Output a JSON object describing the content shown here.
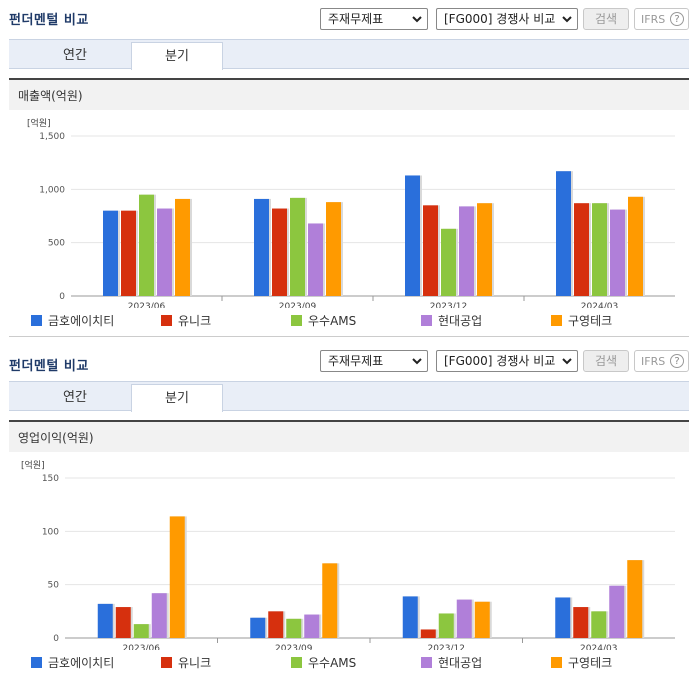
{
  "colors": {
    "series": [
      "#2a6fdb",
      "#d6300e",
      "#8cc63f",
      "#b07fd9",
      "#ff9a00"
    ],
    "title": "#1f3a68",
    "gridline": "#e4e4e4"
  },
  "sections": [
    {
      "title": "펀더멘털 비교",
      "select1": "주재무제표",
      "select2": "[FG000] 경쟁사 비교",
      "search_label": "검색",
      "ifrs_label": "IFRS",
      "ifrs_help": "?",
      "tabs": [
        "연간",
        "분기"
      ],
      "active_tab": 1,
      "panel_title": "매출액(억원)"
    },
    {
      "title": "펀더멘털 비교",
      "select1": "주재무제표",
      "select2": "[FG000] 경쟁사 비교",
      "search_label": "검색",
      "ifrs_label": "IFRS",
      "ifrs_help": "?",
      "tabs": [
        "연간",
        "분기"
      ],
      "active_tab": 1,
      "panel_title": "영업이익(억원)"
    }
  ],
  "chart_data": [
    {
      "type": "bar",
      "title": "매출액(억원)",
      "unit_label": "[억원]",
      "categories": [
        "2023/06",
        "2023/09",
        "2023/12",
        "2024/03"
      ],
      "ylim": [
        0,
        1500
      ],
      "yticks": [
        0,
        500,
        1000,
        1500
      ],
      "ytick_labels": [
        "0",
        "500",
        "1,000",
        "1,500"
      ],
      "grid": true,
      "legend_position": "bottom",
      "series": [
        {
          "name": "금호에이치티",
          "values": [
            800,
            910,
            1130,
            1170
          ]
        },
        {
          "name": "유니크",
          "values": [
            800,
            820,
            850,
            870
          ]
        },
        {
          "name": "우수AMS",
          "values": [
            950,
            920,
            630,
            870
          ]
        },
        {
          "name": "현대공업",
          "values": [
            820,
            680,
            840,
            810
          ]
        },
        {
          "name": "구영테크",
          "values": [
            910,
            880,
            870,
            930
          ]
        }
      ]
    },
    {
      "type": "bar",
      "title": "영업이익(억원)",
      "unit_label": "[억원]",
      "categories": [
        "2023/06",
        "2023/09",
        "2023/12",
        "2024/03"
      ],
      "ylim": [
        0,
        150
      ],
      "yticks": [
        0,
        50,
        100,
        150
      ],
      "ytick_labels": [
        "0",
        "50",
        "100",
        "150"
      ],
      "grid": true,
      "legend_position": "bottom",
      "series": [
        {
          "name": "금호에이치티",
          "values": [
            32,
            19,
            39,
            38
          ]
        },
        {
          "name": "유니크",
          "values": [
            29,
            25,
            8,
            29
          ]
        },
        {
          "name": "우수AMS",
          "values": [
            13,
            18,
            23,
            25
          ]
        },
        {
          "name": "현대공업",
          "values": [
            42,
            22,
            36,
            49
          ]
        },
        {
          "name": "구영테크",
          "values": [
            114,
            70,
            34,
            73
          ]
        }
      ]
    }
  ]
}
